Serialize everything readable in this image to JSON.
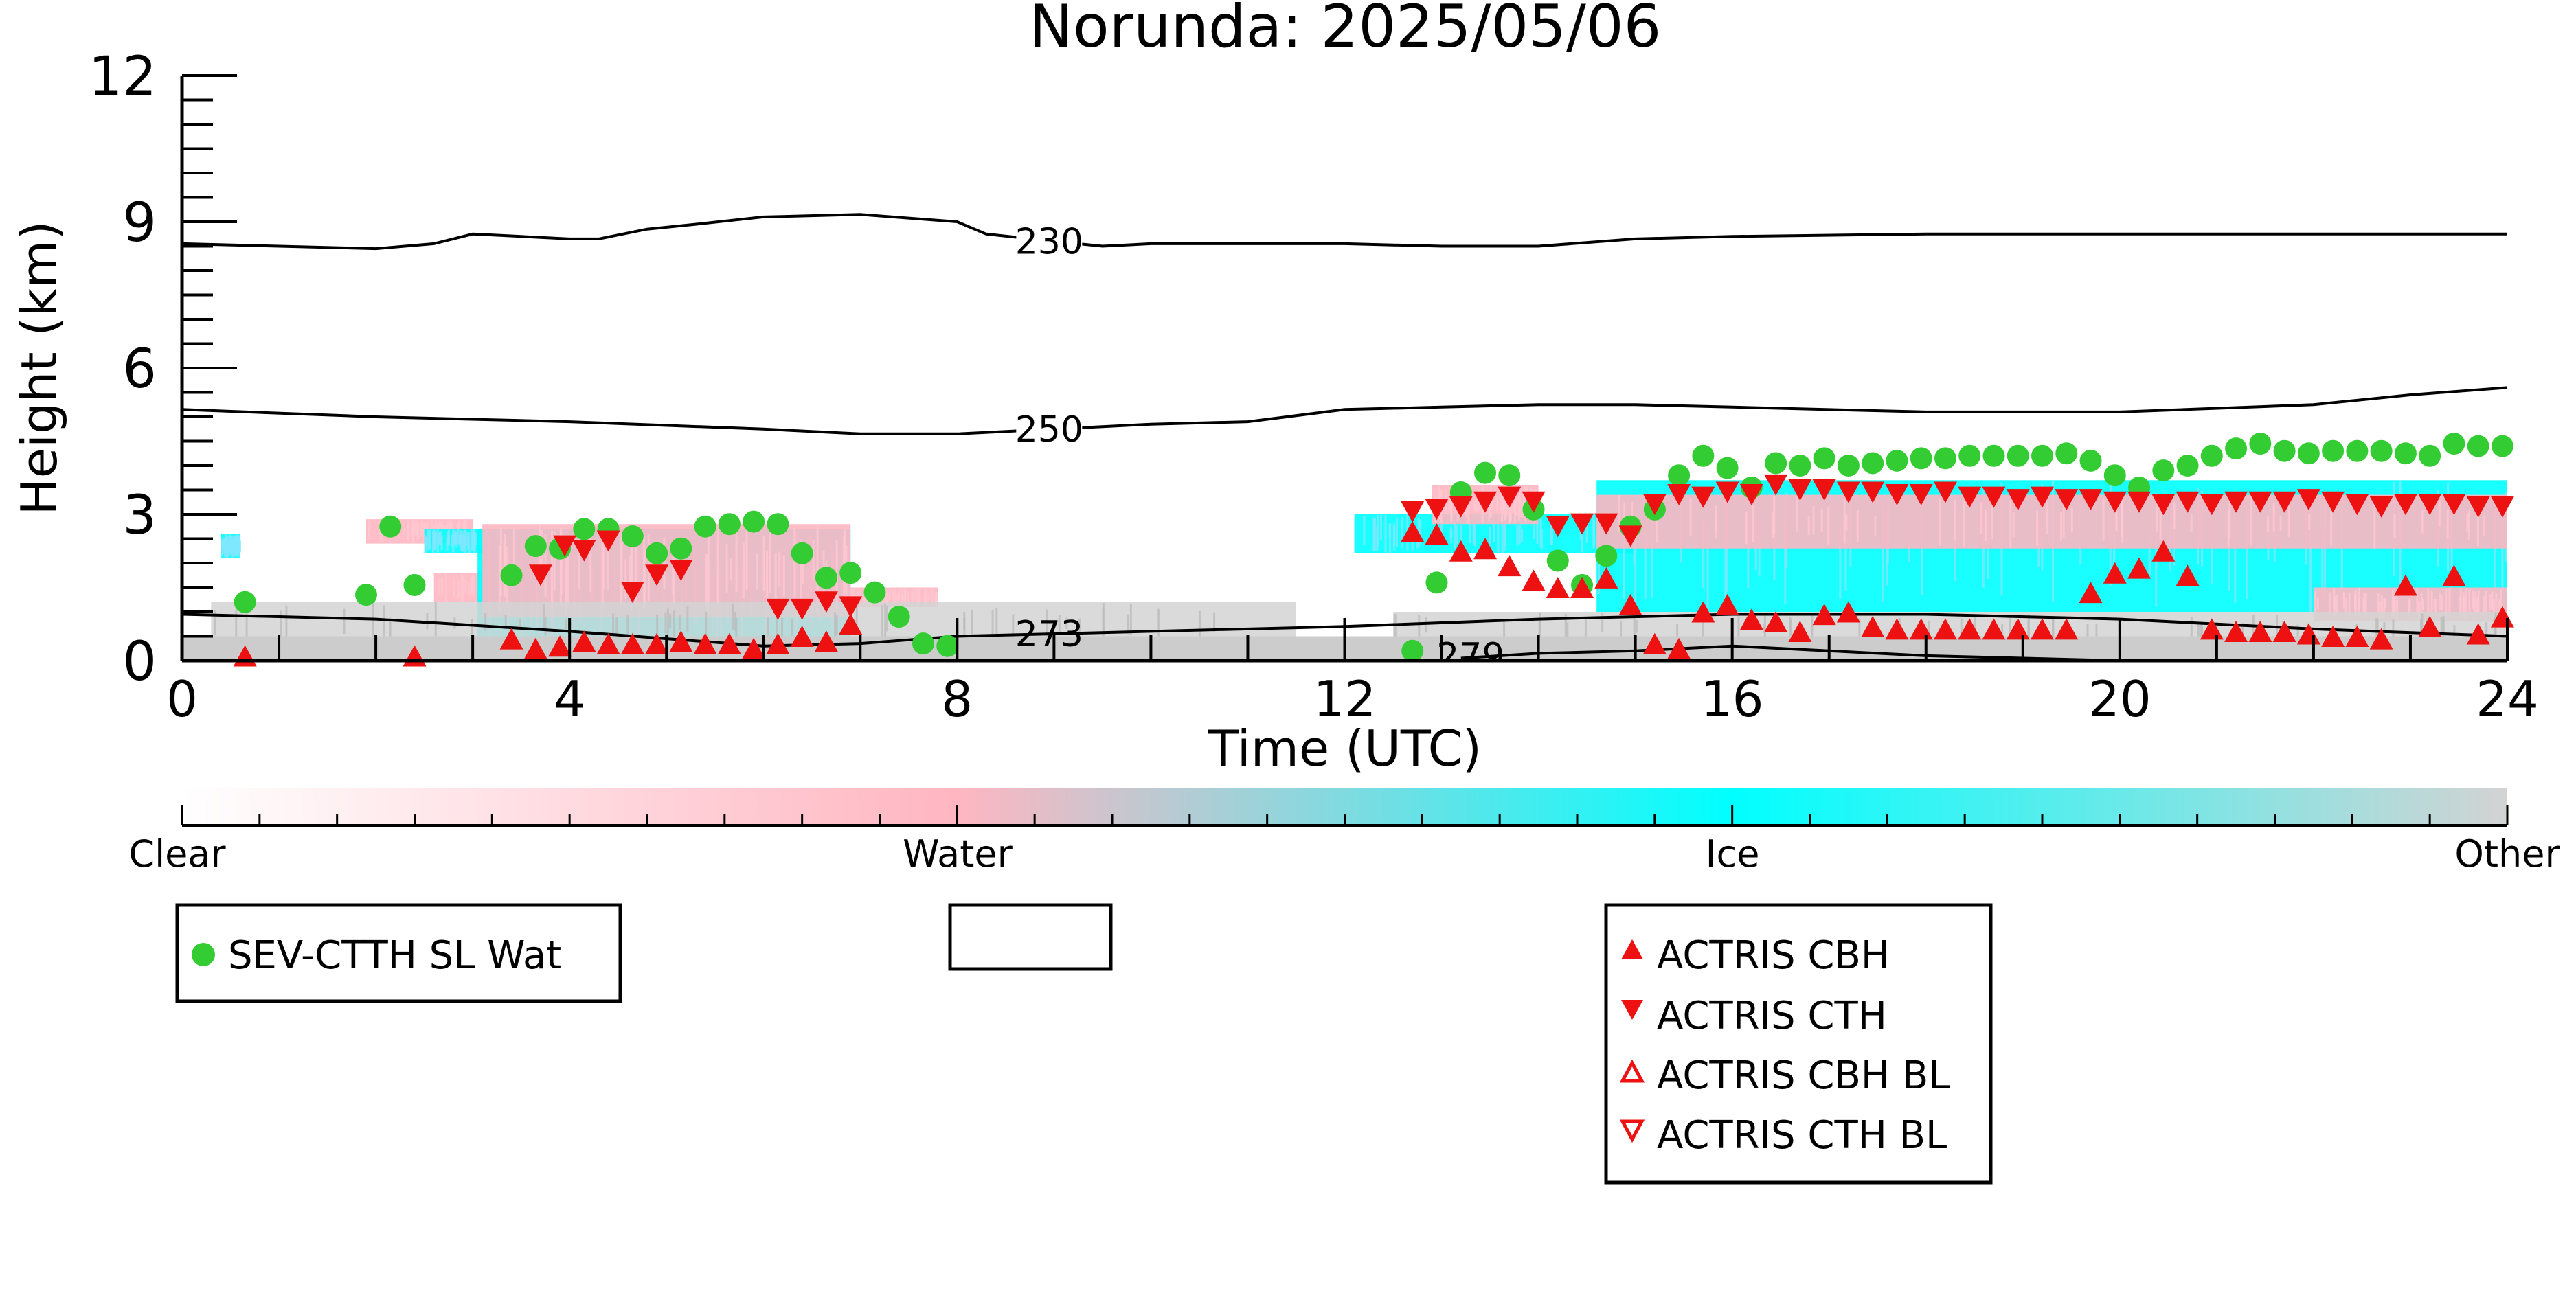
{
  "chart_data": {
    "type": "scatter",
    "title": "Norunda: 2025/05/06",
    "xlabel": "Time (UTC)",
    "ylabel": "Height (km)",
    "xlim": [
      0,
      24
    ],
    "ylim": [
      0,
      12
    ],
    "x_ticks": [
      "0",
      "4",
      "8",
      "12",
      "16",
      "20",
      "24"
    ],
    "y_ticks": [
      "0",
      "3",
      "6",
      "9",
      "12"
    ],
    "grid": false,
    "colorbar": {
      "labels": [
        "Clear",
        "Water",
        "Ice",
        "Other"
      ],
      "colors": {
        "clear": "#ffffff",
        "water": "#ffb6c1",
        "ice": "#00ffff",
        "other": "#d3d3d3",
        "ground": "#cccccc"
      }
    },
    "contours": [
      {
        "label": "230",
        "x": [
          0,
          1,
          2,
          2.6,
          3,
          3.5,
          4,
          4.3,
          4.8,
          5.3,
          6,
          7,
          8,
          8.3,
          9,
          9.5,
          10,
          11,
          12,
          13,
          14,
          15,
          16,
          18,
          20,
          22,
          24
        ],
        "y": [
          8.55,
          8.5,
          8.45,
          8.55,
          8.75,
          8.7,
          8.65,
          8.65,
          8.85,
          8.95,
          9.1,
          9.15,
          9.0,
          8.75,
          8.6,
          8.5,
          8.55,
          8.55,
          8.55,
          8.5,
          8.5,
          8.65,
          8.7,
          8.75,
          8.75,
          8.75,
          8.75
        ]
      },
      {
        "label": "250",
        "x": [
          0,
          2,
          4,
          6,
          7,
          8,
          9,
          9.5,
          10,
          11,
          12,
          13,
          14,
          15,
          16,
          18,
          20,
          22,
          23,
          24
        ],
        "y": [
          5.15,
          5.0,
          4.9,
          4.75,
          4.65,
          4.65,
          4.75,
          4.8,
          4.85,
          4.9,
          5.15,
          5.2,
          5.25,
          5.25,
          5.2,
          5.1,
          5.1,
          5.25,
          5.45,
          5.6
        ]
      },
      {
        "label": "273",
        "x": [
          0,
          2,
          4,
          6,
          7,
          8,
          9,
          10,
          12,
          14,
          16,
          18,
          20,
          22,
          24
        ],
        "y": [
          0.95,
          0.85,
          0.6,
          0.3,
          0.35,
          0.5,
          0.55,
          0.6,
          0.7,
          0.85,
          0.95,
          0.95,
          0.85,
          0.65,
          0.5
        ]
      },
      {
        "label": "279",
        "x": [
          13.2,
          14,
          15,
          16,
          18,
          20,
          22,
          24
        ],
        "y": [
          0.05,
          0.15,
          0.2,
          0.3,
          0.1,
          0.0,
          0.0,
          0.0
        ]
      }
    ],
    "series": [
      {
        "name": "SEV-CTTH SL Wat",
        "color": "#33cc33",
        "marker": "circle",
        "x": [
          0.65,
          1.9,
          2.15,
          2.4,
          3.4,
          3.65,
          3.9,
          4.15,
          4.4,
          4.65,
          4.9,
          5.15,
          5.4,
          5.65,
          5.9,
          6.15,
          6.4,
          6.65,
          6.9,
          7.15,
          7.4,
          7.65,
          7.9,
          12.7,
          12.95,
          13.2,
          13.45,
          13.7,
          13.95,
          14.2,
          14.45,
          14.7,
          14.95,
          15.2,
          15.45,
          15.7,
          15.95,
          16.2,
          16.45,
          16.7,
          16.95,
          17.2,
          17.45,
          17.7,
          17.95,
          18.2,
          18.45,
          18.7,
          18.95,
          19.2,
          19.45,
          19.7,
          19.95,
          20.2,
          20.45,
          20.7,
          20.95,
          21.2,
          21.45,
          21.7,
          21.95,
          22.2,
          22.45,
          22.7,
          22.95,
          23.2,
          23.45,
          23.7,
          23.95
        ],
        "y": [
          1.2,
          1.35,
          2.75,
          1.55,
          1.75,
          2.35,
          2.3,
          2.7,
          2.7,
          2.55,
          2.2,
          2.3,
          2.75,
          2.8,
          2.85,
          2.8,
          2.2,
          1.7,
          1.8,
          1.4,
          0.9,
          0.35,
          0.3,
          0.2,
          1.6,
          3.45,
          3.85,
          3.8,
          3.1,
          2.05,
          1.55,
          2.15,
          2.75,
          3.1,
          3.8,
          4.2,
          3.95,
          3.55,
          4.05,
          4.0,
          4.15,
          4.0,
          4.05,
          4.1,
          4.15,
          4.15,
          4.2,
          4.2,
          4.2,
          4.2,
          4.25,
          4.1,
          3.8,
          3.55,
          3.9,
          4.0,
          4.2,
          4.35,
          4.45,
          4.3,
          4.25,
          4.3,
          4.3,
          4.3,
          4.25,
          4.2,
          4.45,
          4.4,
          4.4
        ]
      },
      {
        "name": "ACTRIS CBH",
        "color": "#ee1111",
        "marker": "triangle-up",
        "x": [
          0.65,
          2.4,
          3.4,
          3.65,
          3.9,
          4.15,
          4.4,
          4.65,
          4.9,
          5.15,
          5.4,
          5.65,
          5.9,
          6.15,
          6.4,
          6.65,
          6.9,
          12.7,
          12.95,
          13.2,
          13.45,
          13.7,
          13.95,
          14.2,
          14.45,
          14.7,
          14.95,
          15.2,
          15.45,
          15.7,
          15.95,
          16.2,
          16.45,
          16.7,
          16.95,
          17.2,
          17.45,
          17.7,
          17.95,
          18.2,
          18.45,
          18.7,
          18.95,
          19.2,
          19.45,
          19.7,
          19.95,
          20.2,
          20.45,
          20.7,
          20.95,
          21.2,
          21.45,
          21.7,
          21.95,
          22.2,
          22.45,
          22.7,
          22.95,
          23.2,
          23.45,
          23.7,
          23.95
        ],
        "y": [
          0.05,
          0.05,
          0.4,
          0.2,
          0.25,
          0.35,
          0.3,
          0.3,
          0.3,
          0.35,
          0.3,
          0.3,
          0.2,
          0.3,
          0.45,
          0.35,
          0.7,
          2.6,
          2.55,
          2.2,
          2.25,
          1.9,
          1.6,
          1.45,
          1.45,
          1.65,
          1.1,
          0.3,
          0.2,
          0.95,
          1.1,
          0.8,
          0.75,
          0.55,
          0.9,
          0.95,
          0.65,
          0.6,
          0.6,
          0.6,
          0.6,
          0.6,
          0.6,
          0.6,
          0.6,
          1.35,
          1.75,
          1.85,
          2.2,
          1.7,
          0.6,
          0.55,
          0.55,
          0.55,
          0.5,
          0.45,
          0.45,
          0.4,
          1.5,
          0.65,
          1.7,
          0.5,
          0.85
        ]
      },
      {
        "name": "ACTRIS CTH",
        "color": "#ee1111",
        "marker": "triangle-down",
        "x": [
          3.7,
          3.95,
          4.15,
          4.4,
          4.65,
          4.9,
          5.15,
          6.15,
          6.4,
          6.65,
          6.9,
          12.7,
          12.95,
          13.2,
          13.45,
          13.7,
          13.95,
          14.2,
          14.45,
          14.7,
          14.95,
          15.2,
          15.45,
          15.7,
          15.95,
          16.2,
          16.45,
          16.7,
          16.95,
          17.2,
          17.45,
          17.7,
          17.95,
          18.2,
          18.45,
          18.7,
          18.95,
          19.2,
          19.45,
          19.7,
          19.95,
          20.2,
          20.45,
          20.7,
          20.95,
          21.2,
          21.45,
          21.7,
          21.95,
          22.2,
          22.45,
          22.7,
          22.95,
          23.2,
          23.45,
          23.7,
          23.95
        ],
        "y": [
          1.8,
          2.4,
          2.3,
          2.5,
          1.45,
          1.8,
          1.9,
          1.1,
          1.1,
          1.25,
          1.15,
          3.1,
          3.15,
          3.2,
          3.3,
          3.4,
          3.3,
          2.8,
          2.85,
          2.85,
          2.6,
          3.25,
          3.45,
          3.4,
          3.5,
          3.45,
          3.65,
          3.55,
          3.55,
          3.5,
          3.5,
          3.45,
          3.45,
          3.5,
          3.4,
          3.4,
          3.35,
          3.4,
          3.35,
          3.35,
          3.3,
          3.3,
          3.25,
          3.3,
          3.25,
          3.3,
          3.3,
          3.3,
          3.35,
          3.3,
          3.25,
          3.2,
          3.25,
          3.25,
          3.25,
          3.2,
          3.2
        ]
      },
      {
        "name": "ACTRIS CBH BL",
        "color": "#ee1111",
        "marker": "triangle-up-open",
        "x": [],
        "y": []
      },
      {
        "name": "ACTRIS CTH BL",
        "color": "#ee1111",
        "marker": "triangle-down-open",
        "x": [],
        "y": []
      }
    ],
    "ground_band": {
      "ylim": [
        0,
        0.5
      ]
    },
    "classification_regions": [
      {
        "class": "water",
        "x": [
          1.9,
          3.0
        ],
        "y": [
          2.4,
          2.9
        ]
      },
      {
        "class": "ice",
        "x": [
          0.4,
          0.6
        ],
        "y": [
          2.1,
          2.6
        ]
      },
      {
        "class": "ice",
        "x": [
          2.5,
          3.1
        ],
        "y": [
          2.2,
          2.7
        ]
      },
      {
        "class": "water",
        "x": [
          2.6,
          4.0
        ],
        "y": [
          1.2,
          1.8
        ]
      },
      {
        "class": "ice",
        "x": [
          3.05,
          6.9
        ],
        "y": [
          0.35,
          2.7
        ]
      },
      {
        "class": "water",
        "x": [
          3.1,
          6.9
        ],
        "y": [
          0.9,
          2.8
        ]
      },
      {
        "class": "water",
        "x": [
          6.9,
          7.8
        ],
        "y": [
          1.1,
          1.5
        ]
      },
      {
        "class": "other",
        "x": [
          0.3,
          11.5
        ],
        "y": [
          0.3,
          1.2
        ]
      },
      {
        "class": "ice",
        "x": [
          12.1,
          15.0
        ],
        "y": [
          2.2,
          3.0
        ]
      },
      {
        "class": "water",
        "x": [
          12.9,
          14.0
        ],
        "y": [
          2.8,
          3.6
        ]
      },
      {
        "class": "ice",
        "x": [
          14.6,
          24.0
        ],
        "y": [
          1.0,
          3.7
        ]
      },
      {
        "class": "water",
        "x": [
          14.6,
          24.0
        ],
        "y": [
          2.3,
          3.4
        ]
      },
      {
        "class": "water",
        "x": [
          22.0,
          24.0
        ],
        "y": [
          0.8,
          1.5
        ]
      },
      {
        "class": "other",
        "x": [
          12.5,
          24.0
        ],
        "y": [
          0.3,
          1.0
        ]
      }
    ]
  }
}
